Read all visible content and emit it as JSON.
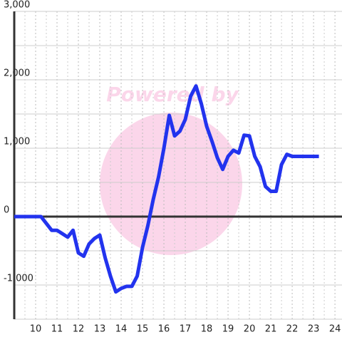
{
  "chart_data": {
    "type": "line",
    "watermark": "Powered by",
    "x": [
      9,
      10.25,
      10.5,
      10.75,
      11,
      11.25,
      11.5,
      11.75,
      12,
      12.25,
      12.5,
      12.75,
      13,
      13.25,
      13.5,
      13.75,
      14,
      14.25,
      14.5,
      14.75,
      15,
      15.25,
      15.5,
      15.75,
      16,
      16.25,
      16.5,
      16.75,
      17,
      17.25,
      17.5,
      17.75,
      18,
      18.25,
      18.5,
      18.75,
      19,
      19.25,
      19.5,
      19.75,
      20,
      20.25,
      20.5,
      20.75,
      21,
      21.25,
      21.5,
      21.75,
      22,
      22.25,
      22.5,
      22.75,
      23,
      23.25
    ],
    "series": [
      {
        "color": "#2233ee",
        "values": [
          0,
          0,
          -100,
          -200,
          -200,
          -250,
          -300,
          -200,
          -530,
          -580,
          -400,
          -320,
          -270,
          -600,
          -870,
          -1100,
          -1050,
          -1020,
          -1020,
          -870,
          -450,
          -130,
          250,
          580,
          1000,
          1480,
          1180,
          1250,
          1420,
          1760,
          1910,
          1650,
          1320,
          1100,
          860,
          690,
          880,
          970,
          930,
          1190,
          1180,
          880,
          730,
          440,
          370,
          370,
          760,
          910,
          880,
          880,
          880,
          880,
          880,
          880
        ]
      }
    ],
    "xlim": [
      9,
      24.33
    ],
    "xticks": [
      10,
      11,
      12,
      13,
      14,
      15,
      16,
      17,
      18,
      19,
      20,
      21,
      22,
      23,
      24
    ],
    "minor_xticks": [
      9.5,
      10.5,
      11.5,
      12.5,
      13.5,
      14.5,
      15.5,
      16.5,
      17.5,
      18.5,
      19.5,
      20.5,
      21.5,
      22.5,
      23.5
    ],
    "ylim": [
      -1500,
      3000
    ],
    "yticks": [
      {
        "value": -1000,
        "label": "-1,000"
      },
      0,
      {
        "value": 1000,
        "label": "1,000"
      },
      {
        "value": 2000,
        "label": "2,000"
      },
      {
        "value": 3000,
        "label": "3,000"
      }
    ],
    "minor_yticks": [
      -1500,
      -500,
      500,
      1500,
      2500
    ],
    "grid": true
  }
}
